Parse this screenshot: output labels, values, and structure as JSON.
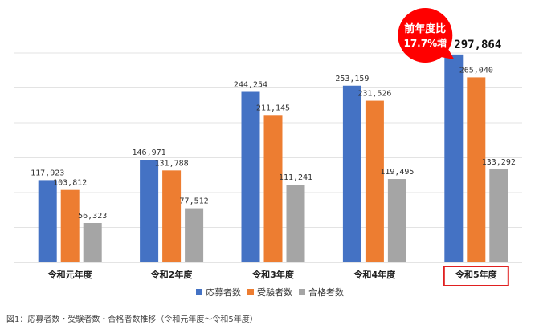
{
  "chart_data": {
    "type": "bar",
    "categories": [
      "令和元年度",
      "令和2年度",
      "令和3年度",
      "令和4年度",
      "令和5年度"
    ],
    "series": [
      {
        "name": "応募者数",
        "color": "#4472C4",
        "values": [
          117923,
          146971,
          244254,
          253159,
          297864
        ],
        "labels": [
          "117,923",
          "146,971",
          "244,254",
          "253,159",
          "297,864"
        ]
      },
      {
        "name": "受験者数",
        "color": "#ED7D31",
        "values": [
          103812,
          131788,
          211145,
          231526,
          265040
        ],
        "labels": [
          "103,812",
          "131,788",
          "211,145",
          "231,526",
          "265,040"
        ]
      },
      {
        "name": "合格者数",
        "color": "#A5A5A5",
        "values": [
          56323,
          77512,
          111241,
          119495,
          133292
        ],
        "labels": [
          "56,323",
          "77,512",
          "111,241",
          "119,495",
          "133,292"
        ]
      }
    ],
    "ylim": [
      0,
      300000
    ],
    "grid": true,
    "legend_position": "bottom",
    "highlight_category_index": 4,
    "highlight_color": "#E02020",
    "callout": {
      "line1": "前年度比",
      "line2": "17.7%増",
      "color": "#FF0000"
    }
  },
  "caption": "図1：応募者数・受験者数・合格者数推移（令和元年度～令和5年度）"
}
